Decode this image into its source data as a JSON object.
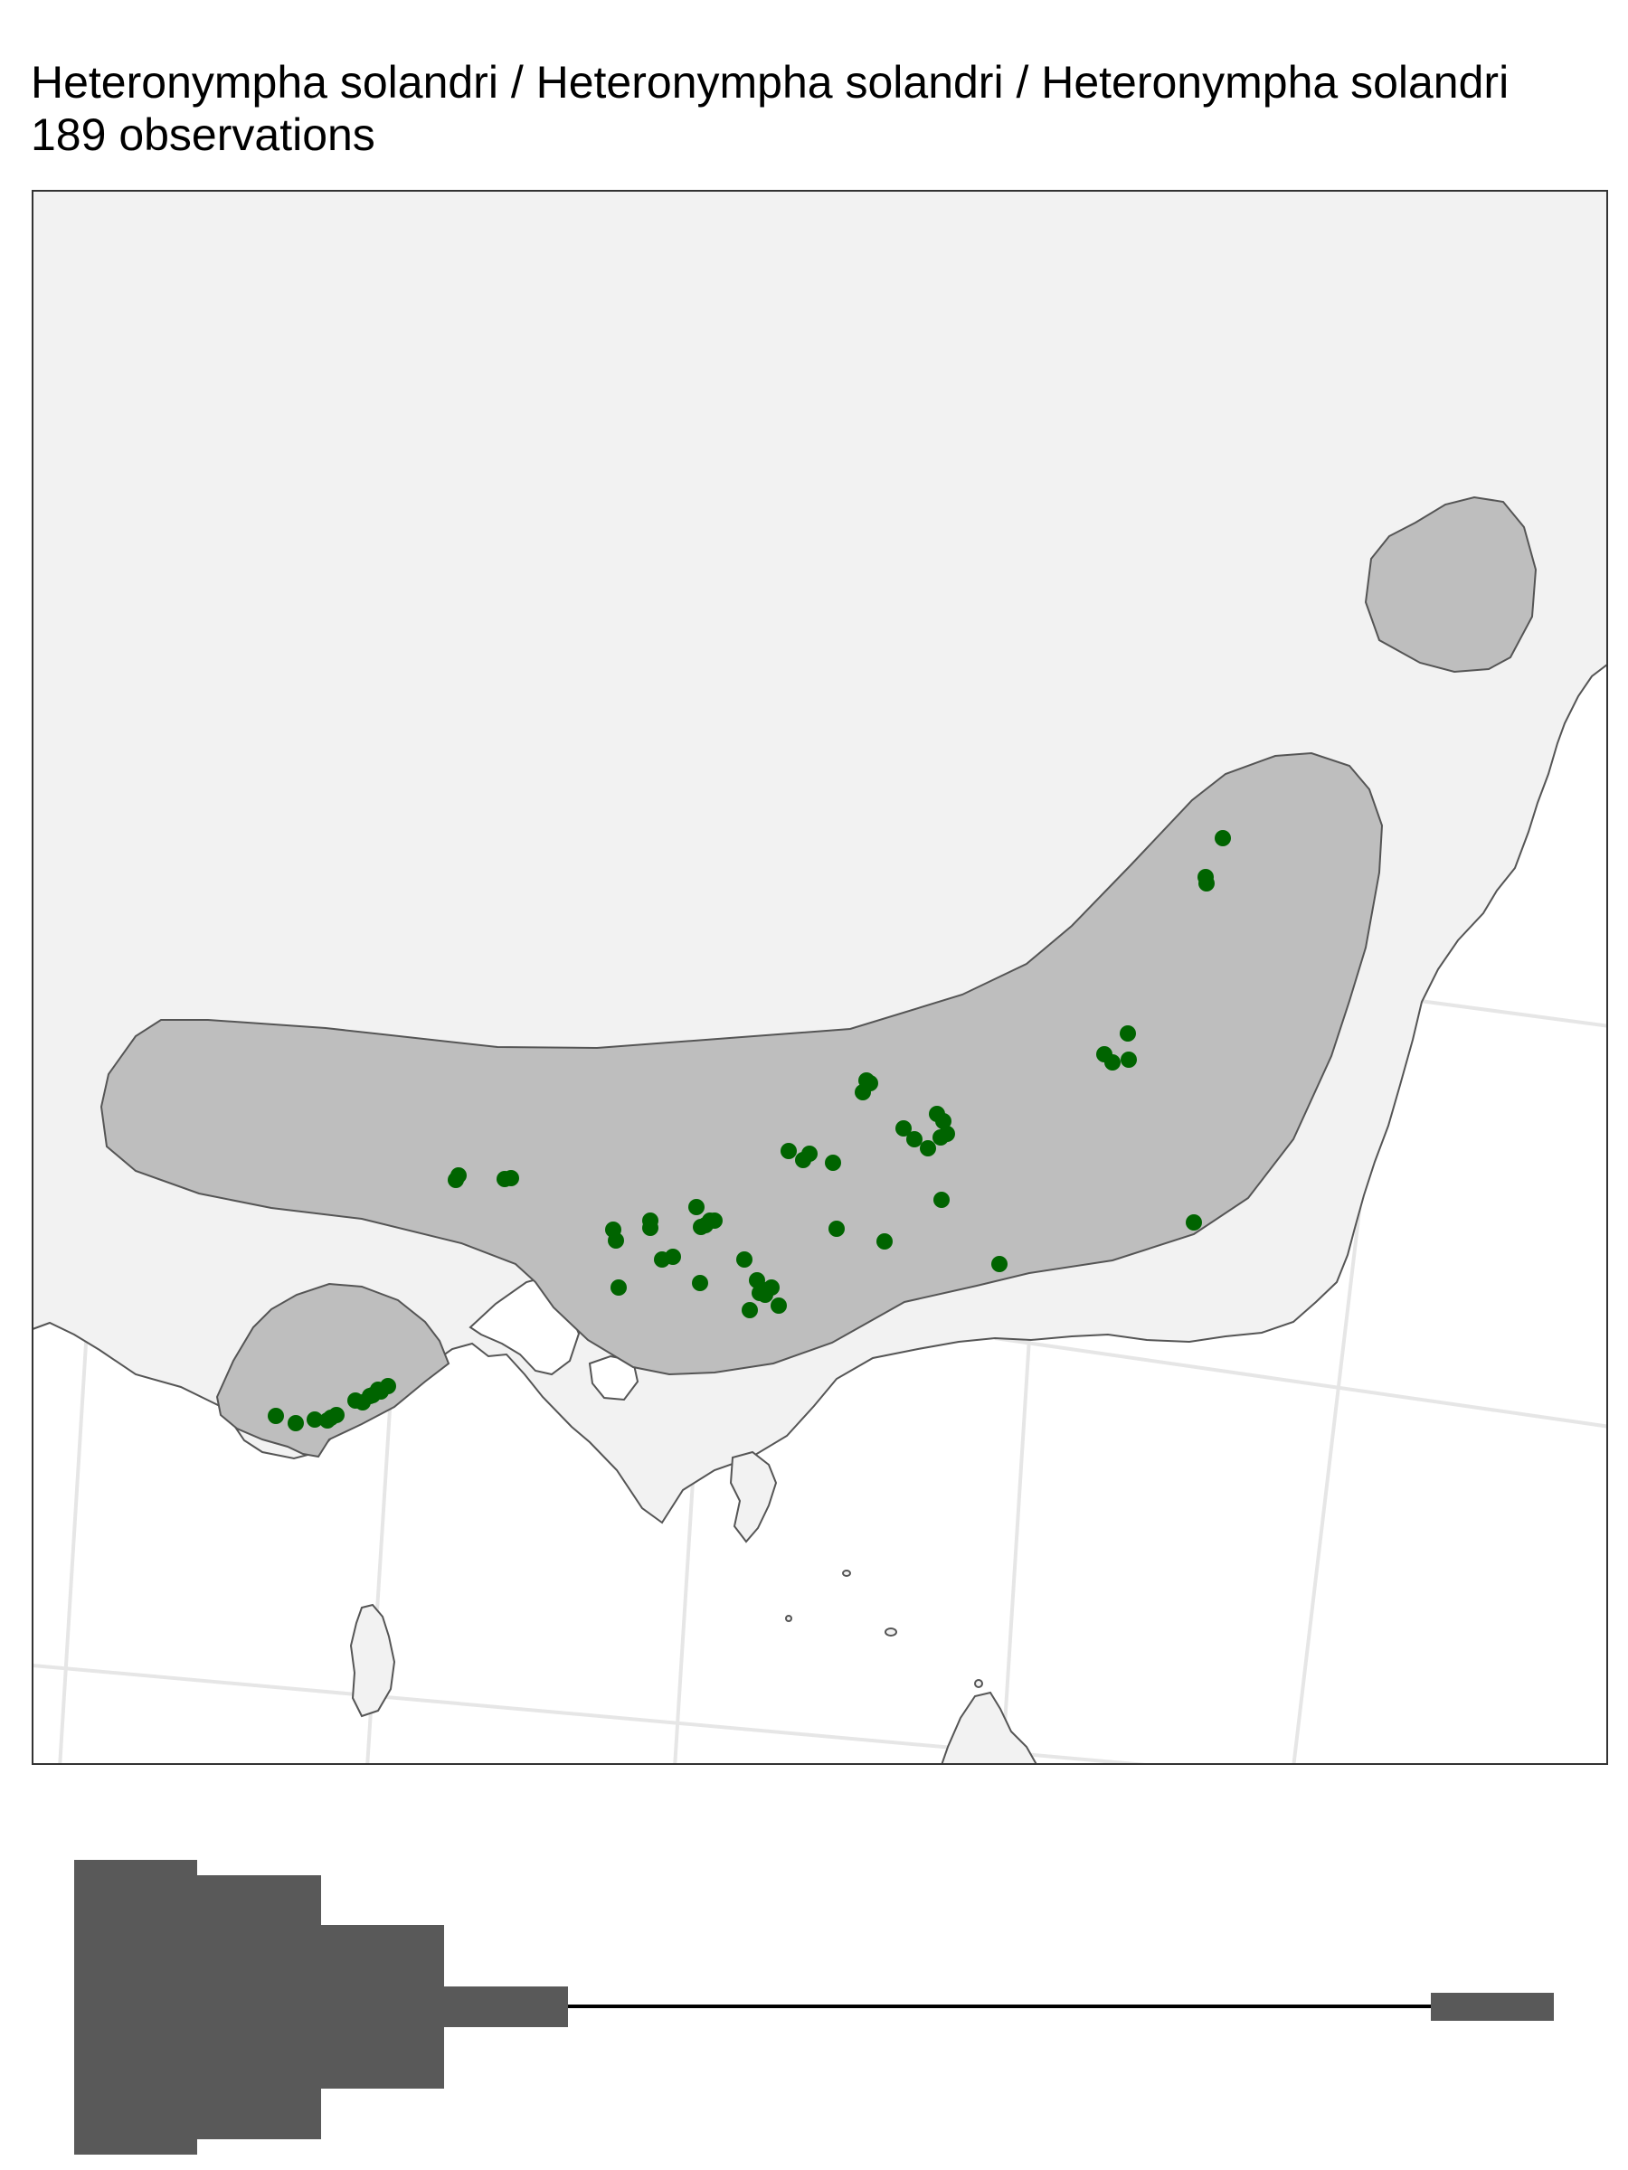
{
  "title": "Heteronympha solandri / Heteronympha solandri / Heteronympha solandri",
  "subtitle": "189 observations",
  "colors": {
    "ocean": "#ffffff",
    "land": "#f2f2f2",
    "range": "#bebebe",
    "outline": "#555555",
    "graticule": "#e6e6e6",
    "points": "#006400",
    "glyph": "#595959"
  },
  "map": {
    "observations_shown": 189,
    "range_polygons": [
      "main-range",
      "coastal-range-west",
      "northern-range-outlier"
    ]
  },
  "chart_data": {
    "type": "scatter",
    "title": "Heteronympha solandri / Heteronympha solandri / Heteronympha solandri",
    "subtitle": "189 observations"
  }
}
